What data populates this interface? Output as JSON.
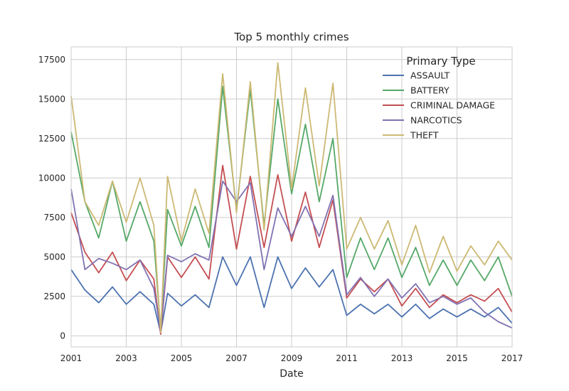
{
  "chart_data": {
    "type": "line",
    "title": "Top 5 monthly crimes",
    "xlabel": "Date",
    "ylabel": "",
    "xlim": [
      "2001-01",
      "2017-01"
    ],
    "ylim": [
      -700,
      18300
    ],
    "x_ticks": [
      "2001",
      "2003",
      "2005",
      "2007",
      "2009",
      "2011",
      "2013",
      "2015",
      "2017"
    ],
    "y_ticks": [
      "0",
      "2500",
      "5000",
      "7500",
      "10000",
      "12500",
      "15000",
      "17500"
    ],
    "grid": true,
    "legend": {
      "title": "Primary Type",
      "position": "top-right"
    },
    "x": [
      "2001-01",
      "2001-07",
      "2002-01",
      "2002-07",
      "2003-01",
      "2003-07",
      "2004-01",
      "2004-04",
      "2004-07",
      "2005-01",
      "2005-07",
      "2006-01",
      "2006-07",
      "2007-01",
      "2007-07",
      "2008-01",
      "2008-07",
      "2009-01",
      "2009-07",
      "2010-01",
      "2010-07",
      "2011-01",
      "2011-07",
      "2012-01",
      "2012-07",
      "2013-01",
      "2013-07",
      "2014-01",
      "2014-07",
      "2015-01",
      "2015-07",
      "2016-01",
      "2016-07",
      "2017-01"
    ],
    "series": [
      {
        "name": "ASSAULT",
        "color": "#4c72b0",
        "values": [
          4200,
          2900,
          2100,
          3100,
          2000,
          2800,
          2000,
          200,
          2700,
          1900,
          2600,
          1800,
          5000,
          3200,
          5000,
          1800,
          5000,
          3000,
          4300,
          3100,
          4200,
          1300,
          2000,
          1400,
          2000,
          1200,
          2000,
          1100,
          1700,
          1200,
          1700,
          1200,
          1800,
          800
        ]
      },
      {
        "name": "BATTERY",
        "color": "#55a868",
        "values": [
          12900,
          8500,
          6200,
          9800,
          6000,
          8500,
          6000,
          400,
          8000,
          5700,
          8200,
          5600,
          15800,
          8000,
          15600,
          7000,
          15000,
          9000,
          13400,
          8500,
          12500,
          3700,
          6200,
          4200,
          6200,
          3700,
          5600,
          3200,
          4800,
          3200,
          4800,
          3500,
          5000,
          2500
        ]
      },
      {
        "name": "CRIMINAL DAMAGE",
        "color": "#c44e52",
        "values": [
          7800,
          5300,
          4000,
          5300,
          3500,
          4800,
          3600,
          100,
          5000,
          3700,
          5000,
          3600,
          10800,
          5500,
          10100,
          5600,
          10200,
          6000,
          9100,
          5600,
          8600,
          2400,
          3600,
          2800,
          3600,
          1900,
          3000,
          1800,
          2600,
          2100,
          2600,
          2200,
          3000,
          1500
        ]
      },
      {
        "name": "NARCOTICS",
        "color": "#8172b2",
        "values": [
          9300,
          4200,
          4900,
          4600,
          4200,
          4800,
          3000,
          300,
          5100,
          4700,
          5200,
          4800,
          9800,
          8500,
          9700,
          4200,
          8100,
          6300,
          8200,
          6300,
          8900,
          2600,
          3700,
          2500,
          3600,
          2400,
          3300,
          2100,
          2500,
          2000,
          2400,
          1500,
          900,
          500
        ]
      },
      {
        "name": "THEFT",
        "color": "#ccb974",
        "values": [
          15200,
          8500,
          7000,
          9800,
          7200,
          10000,
          7000,
          200,
          10100,
          6000,
          9300,
          6500,
          16600,
          7800,
          16100,
          6700,
          17300,
          9300,
          15700,
          9500,
          16000,
          5500,
          7500,
          5500,
          7300,
          4500,
          7000,
          4000,
          6300,
          4100,
          5700,
          4500,
          6000,
          4800
        ]
      }
    ]
  }
}
